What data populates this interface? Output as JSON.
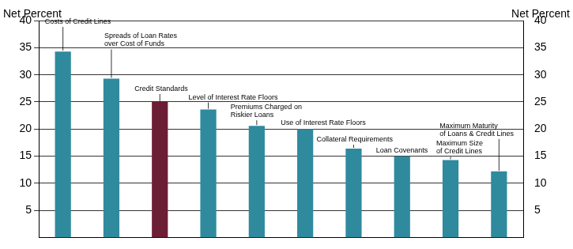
{
  "chart_data": {
    "type": "bar",
    "y_label": "Net Percent",
    "y2_label": "Net Percent",
    "categories": [
      "Costs of Credit Lines",
      "Spreads of Loan Rates\nover Cost of Funds",
      "Credit Standards",
      "Level of Interest Rate Floors",
      "Premiums Charged on\nRiskier Loans",
      "Use of Interest Rate Floors",
      "Collateral Requirements",
      "Loan Covenants",
      "Maximum Size\nof Credit Lines",
      "Maximum Maturity\nof Loans & Credit Lines"
    ],
    "values": [
      34.3,
      29.3,
      25,
      23.6,
      20.6,
      20,
      16.4,
      15,
      14.3,
      12.2
    ],
    "colors": [
      "#2f8a9e",
      "#2f8a9e",
      "#6d1e37",
      "#2f8a9e",
      "#2f8a9e",
      "#2f8a9e",
      "#2f8a9e",
      "#2f8a9e",
      "#2f8a9e",
      "#2f8a9e"
    ],
    "ylim": [
      0,
      40
    ],
    "yticks": [
      5,
      10,
      15,
      20,
      25,
      30,
      35,
      40
    ],
    "y2lim": [
      0,
      40
    ],
    "y2ticks": [
      5,
      10,
      15,
      20,
      25,
      30,
      35,
      40
    ],
    "grid": true,
    "tick_labels": "y"
  }
}
